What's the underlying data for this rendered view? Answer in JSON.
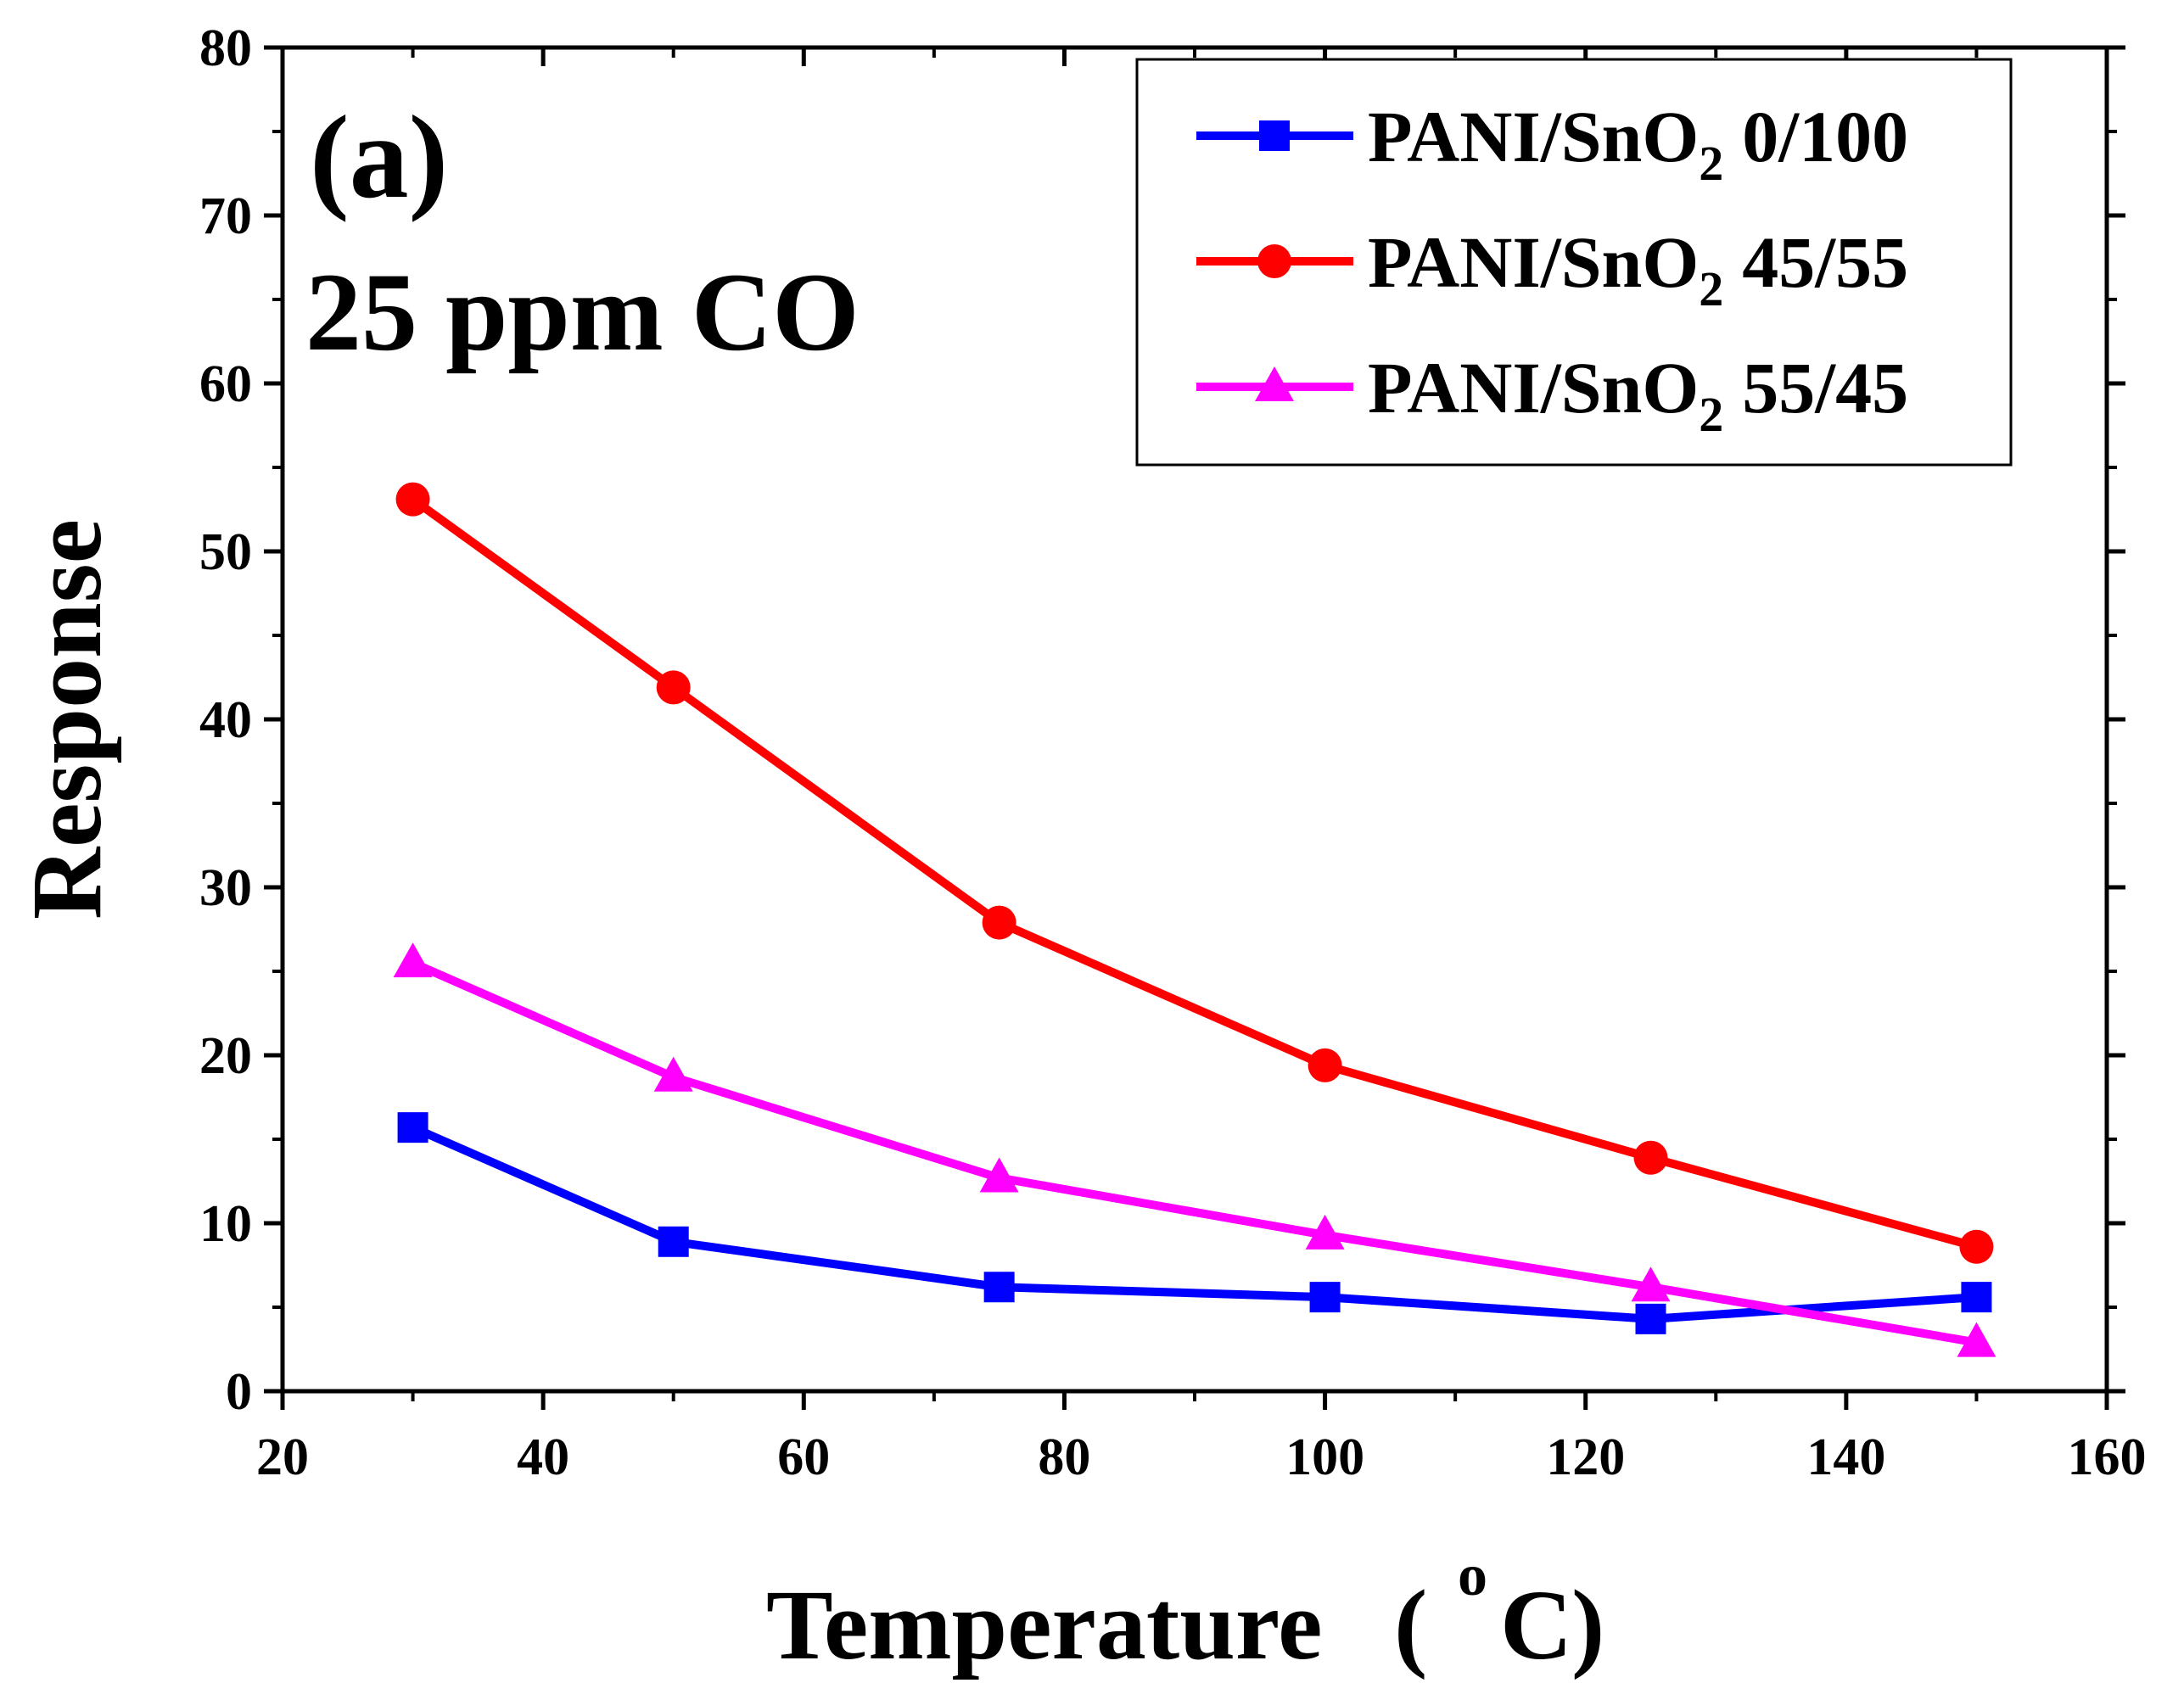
{
  "chart_data": {
    "type": "line",
    "panel_label": "(a)",
    "condition": "25 ppm CO",
    "xlabel": {
      "main": "Temperature",
      "open": "(",
      "sup": "o",
      "unit": "C",
      "close": ")"
    },
    "ylabel": "Response",
    "xlim": [
      20,
      160
    ],
    "ylim": [
      0,
      80
    ],
    "xticks": [
      20,
      40,
      60,
      80,
      100,
      120,
      140,
      160
    ],
    "yticks": [
      0,
      10,
      20,
      30,
      40,
      50,
      60,
      70,
      80
    ],
    "x": [
      30,
      50,
      75,
      100,
      125,
      150
    ],
    "series": [
      {
        "name": "PANI/SnO2 0/100",
        "label_main": "PANI/SnO",
        "label_sub": "2",
        "label_ratio": "0/100",
        "color": "#0000ff",
        "marker": "square",
        "values": [
          15.7,
          8.9,
          6.2,
          5.6,
          4.3,
          5.6
        ]
      },
      {
        "name": "PANI/SnO2 45/55",
        "label_main": "PANI/SnO",
        "label_sub": "2",
        "label_ratio": "45/55",
        "color": "#ff0000",
        "marker": "circle",
        "values": [
          53.1,
          41.9,
          27.9,
          19.4,
          13.9,
          8.6
        ]
      },
      {
        "name": "PANI/SnO2 55/45",
        "label_main": "PANI/SnO",
        "label_sub": "2",
        "label_ratio": "55/45",
        "color": "#ff00ff",
        "marker": "triangle",
        "values": [
          25.5,
          18.7,
          12.7,
          9.3,
          6.2,
          2.9
        ]
      }
    ],
    "legend_position": "top-right",
    "grid": false
  }
}
